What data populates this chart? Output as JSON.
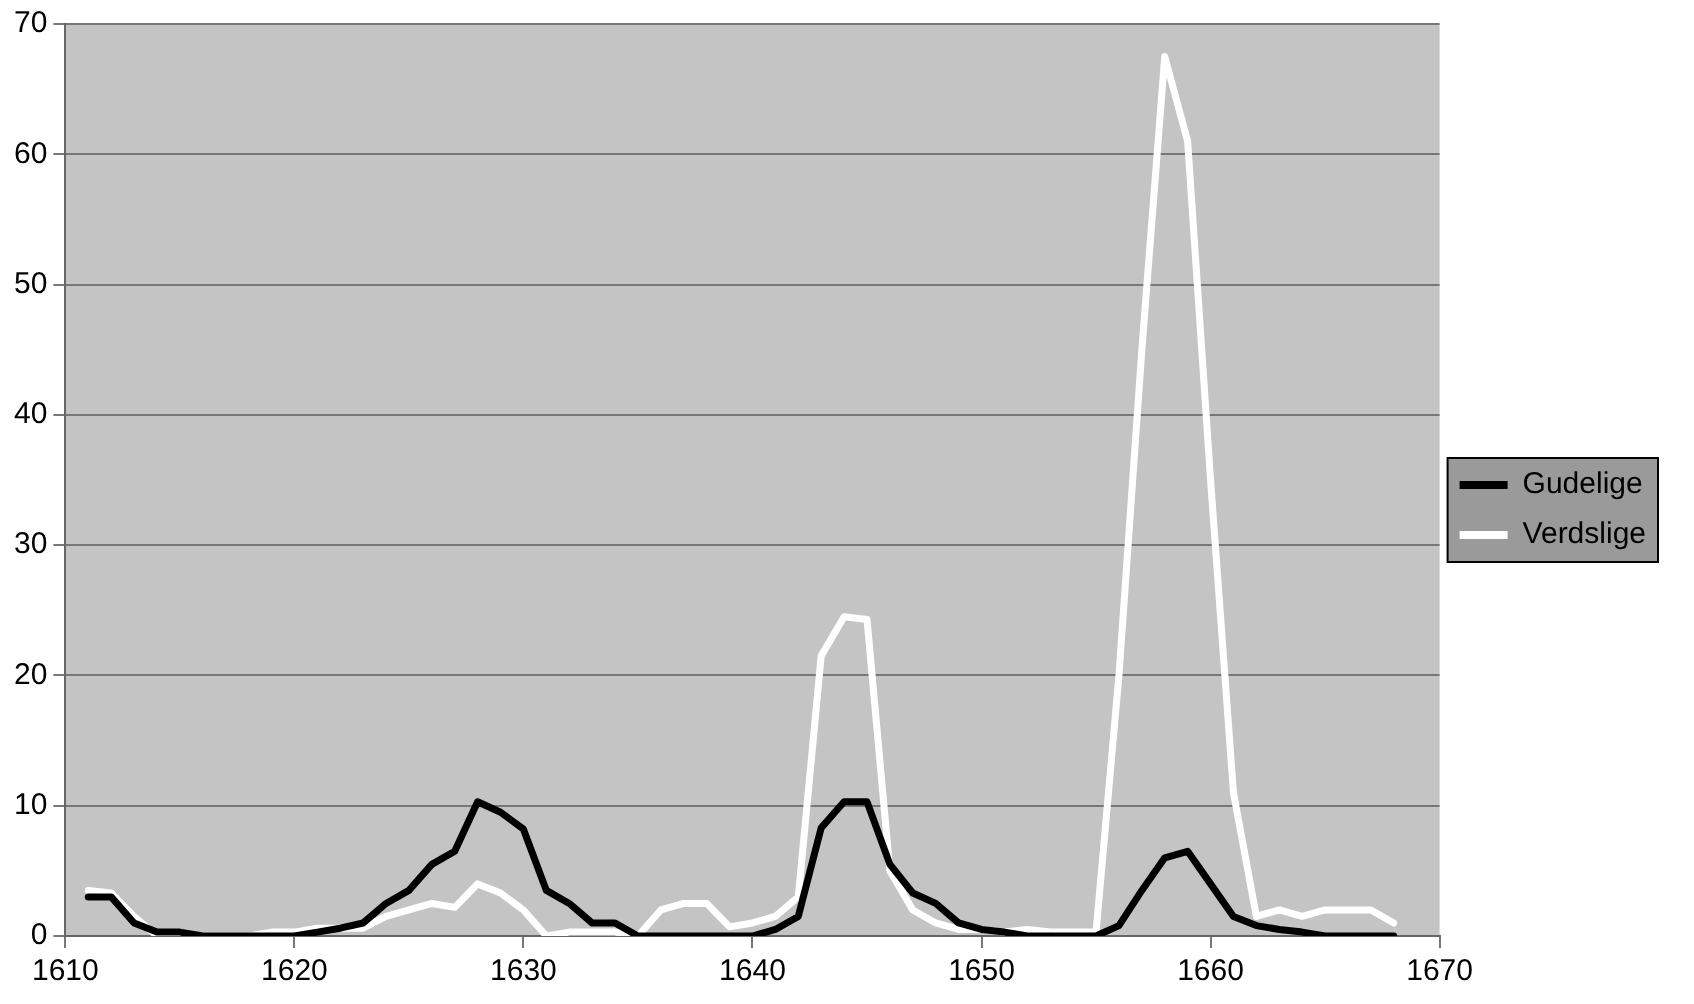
{
  "chart_data": {
    "type": "line",
    "x": [
      1611,
      1612,
      1613,
      1614,
      1615,
      1616,
      1617,
      1618,
      1619,
      1620,
      1621,
      1622,
      1623,
      1624,
      1625,
      1626,
      1627,
      1628,
      1629,
      1630,
      1631,
      1632,
      1633,
      1634,
      1635,
      1636,
      1637,
      1638,
      1639,
      1640,
      1641,
      1642,
      1643,
      1644,
      1645,
      1646,
      1647,
      1648,
      1649,
      1650,
      1651,
      1652,
      1653,
      1654,
      1655,
      1656,
      1657,
      1658,
      1659,
      1660,
      1661,
      1662,
      1663,
      1664,
      1665,
      1666,
      1667,
      1668
    ],
    "series": [
      {
        "name": "Gudelige",
        "color": "#000000",
        "values": [
          3,
          3,
          1,
          0.3,
          0.3,
          0,
          0,
          0,
          0,
          0,
          0.3,
          0.6,
          1,
          2.5,
          3.5,
          5.5,
          6.5,
          10.3,
          9.5,
          8.2,
          3.5,
          2.5,
          1,
          1,
          0,
          0,
          0,
          0,
          0,
          0,
          0.5,
          1.5,
          8.3,
          10.3,
          10.3,
          5.5,
          3.3,
          2.5,
          1,
          0.5,
          0.3,
          0,
          0,
          0,
          0,
          0.8,
          3.5,
          6,
          6.5,
          4,
          1.5,
          0.8,
          0.5,
          0.3,
          0,
          0,
          0,
          0
        ]
      },
      {
        "name": "Verdslige",
        "color": "#ffffff",
        "values": [
          3.5,
          3.3,
          1.5,
          0,
          0,
          0,
          0,
          0,
          0.3,
          0.3,
          0.6,
          0.6,
          0.6,
          1.5,
          2,
          2.5,
          2.2,
          4,
          3.3,
          2,
          0,
          0.3,
          0.3,
          0.3,
          0,
          2,
          2.5,
          2.5,
          0.7,
          1,
          1.5,
          3,
          21.5,
          24.5,
          24.3,
          5,
          2,
          1,
          0.5,
          0.5,
          0.3,
          0.5,
          0.3,
          0.3,
          0.3,
          20,
          45,
          67.5,
          61,
          35,
          11,
          1.5,
          2,
          1.5,
          2,
          2,
          2,
          1
        ]
      }
    ],
    "xlim": [
      1610,
      1670
    ],
    "xticks": [
      1610,
      1620,
      1630,
      1640,
      1650,
      1660,
      1670
    ],
    "ylim": [
      0,
      70
    ],
    "yticks": [
      0,
      10,
      20,
      30,
      40,
      50,
      60,
      70
    ],
    "grid": "y",
    "legend": "right",
    "marker": "none",
    "line_style": "solid"
  }
}
